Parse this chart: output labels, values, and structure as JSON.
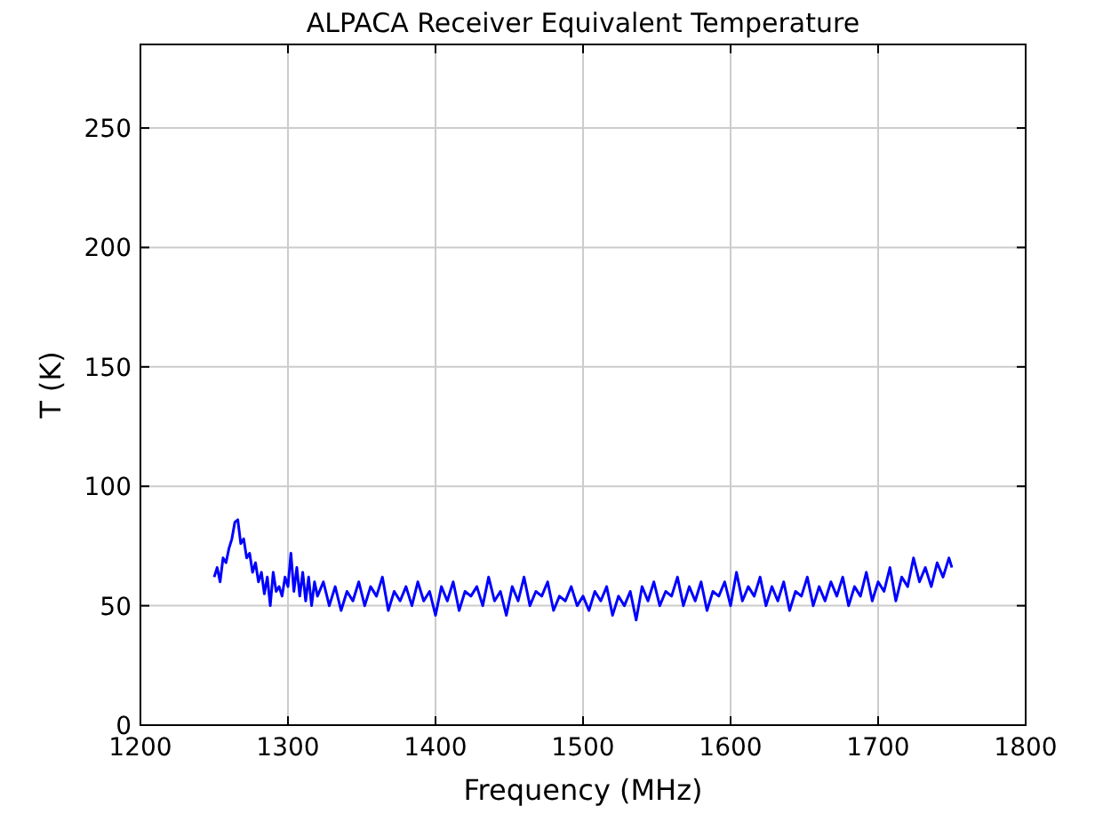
{
  "chart_data": {
    "type": "line",
    "title": "ALPACA Receiver Equivalent Temperature",
    "xlabel": "Frequency (MHz)",
    "ylabel": "T (K)",
    "x": [
      1250,
      1252,
      1254,
      1256,
      1258,
      1260,
      1262,
      1264,
      1266,
      1268,
      1270,
      1272,
      1274,
      1276,
      1278,
      1280,
      1282,
      1284,
      1286,
      1288,
      1290,
      1292,
      1294,
      1296,
      1298,
      1300,
      1302,
      1304,
      1306,
      1308,
      1310,
      1312,
      1314,
      1316,
      1318,
      1320,
      1324,
      1328,
      1332,
      1336,
      1340,
      1344,
      1348,
      1352,
      1356,
      1360,
      1364,
      1368,
      1372,
      1376,
      1380,
      1384,
      1388,
      1392,
      1396,
      1400,
      1404,
      1408,
      1412,
      1416,
      1420,
      1424,
      1428,
      1432,
      1436,
      1440,
      1444,
      1448,
      1452,
      1456,
      1460,
      1464,
      1468,
      1472,
      1476,
      1480,
      1484,
      1488,
      1492,
      1496,
      1500,
      1504,
      1508,
      1512,
      1516,
      1520,
      1524,
      1528,
      1532,
      1536,
      1540,
      1544,
      1548,
      1552,
      1556,
      1560,
      1564,
      1568,
      1572,
      1576,
      1580,
      1584,
      1588,
      1592,
      1596,
      1600,
      1604,
      1608,
      1612,
      1616,
      1620,
      1624,
      1628,
      1632,
      1636,
      1640,
      1644,
      1648,
      1652,
      1656,
      1660,
      1664,
      1668,
      1672,
      1676,
      1680,
      1684,
      1688,
      1692,
      1696,
      1700,
      1704,
      1708,
      1712,
      1716,
      1720,
      1724,
      1728,
      1732,
      1736,
      1740,
      1744,
      1748,
      1750
    ],
    "series": [
      {
        "color": "#0000ff",
        "values": [
          62,
          66,
          60,
          70,
          68,
          74,
          78,
          85,
          86,
          76,
          78,
          70,
          72,
          64,
          68,
          60,
          64,
          55,
          62,
          50,
          64,
          56,
          58,
          54,
          62,
          58,
          72,
          56,
          66,
          54,
          64,
          52,
          62,
          50,
          60,
          54,
          60,
          50,
          58,
          48,
          56,
          52,
          60,
          50,
          58,
          54,
          62,
          48,
          56,
          52,
          58,
          50,
          60,
          52,
          56,
          46,
          58,
          52,
          60,
          48,
          56,
          54,
          58,
          50,
          62,
          52,
          56,
          46,
          58,
          52,
          62,
          50,
          56,
          54,
          60,
          48,
          54,
          52,
          58,
          50,
          54,
          48,
          56,
          52,
          58,
          46,
          54,
          50,
          56,
          44,
          58,
          52,
          60,
          50,
          56,
          54,
          62,
          50,
          58,
          52,
          60,
          48,
          56,
          54,
          60,
          50,
          64,
          52,
          58,
          54,
          62,
          50,
          58,
          52,
          60,
          48,
          56,
          54,
          62,
          50,
          58,
          52,
          60,
          54,
          62,
          50,
          58,
          54,
          64,
          52,
          60,
          56,
          66,
          52,
          62,
          58,
          70,
          60,
          66,
          58,
          68,
          62,
          70,
          66
        ]
      }
    ],
    "xlim": [
      1200,
      1800
    ],
    "ylim": [
      0,
      285
    ],
    "xticks": [
      1200,
      1300,
      1400,
      1500,
      1600,
      1700,
      1800
    ],
    "yticks": [
      0,
      50,
      100,
      150,
      200,
      250
    ],
    "grid": true,
    "line_style": "solid"
  }
}
